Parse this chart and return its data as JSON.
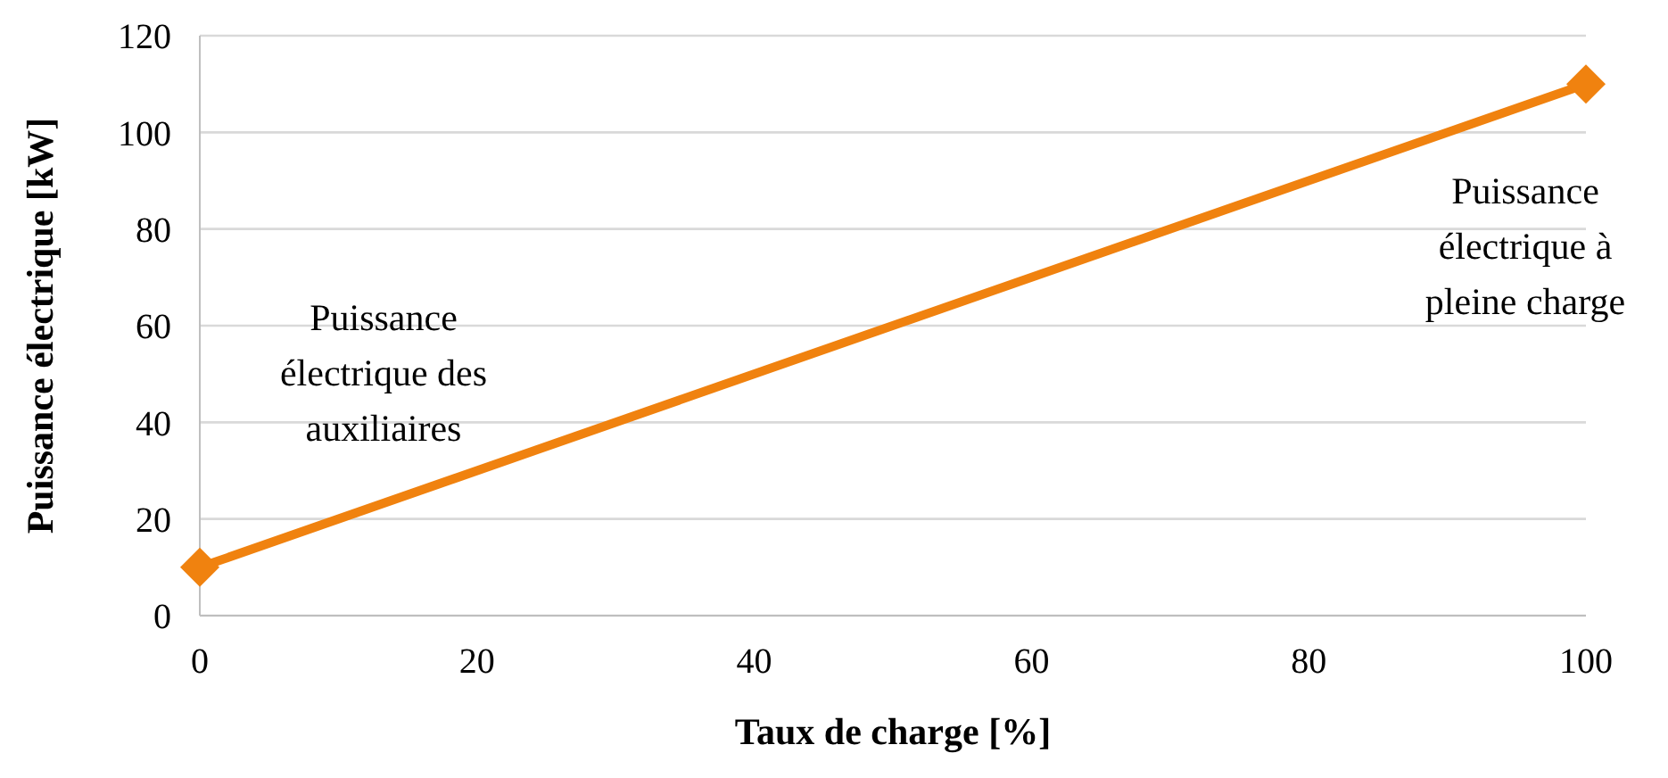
{
  "chart_data": {
    "type": "line",
    "xlabel": "Taux de charge [%]",
    "ylabel": "Puissance électrique  [kW]",
    "x": [
      0,
      100
    ],
    "series": [
      {
        "color": "#f0820f",
        "values": [
          10,
          110
        ]
      }
    ],
    "xlim": [
      0,
      100
    ],
    "xticks": [
      0,
      20,
      40,
      60,
      80,
      100
    ],
    "ylim": [
      0,
      120
    ],
    "yticks": [
      0,
      20,
      40,
      60,
      80,
      100,
      120
    ],
    "grid": "y",
    "marker": "diamond",
    "line_style": "solid",
    "annotations": [
      "Puissance électrique des auxiliaires",
      "Puissance électrique à pleine charge"
    ]
  }
}
